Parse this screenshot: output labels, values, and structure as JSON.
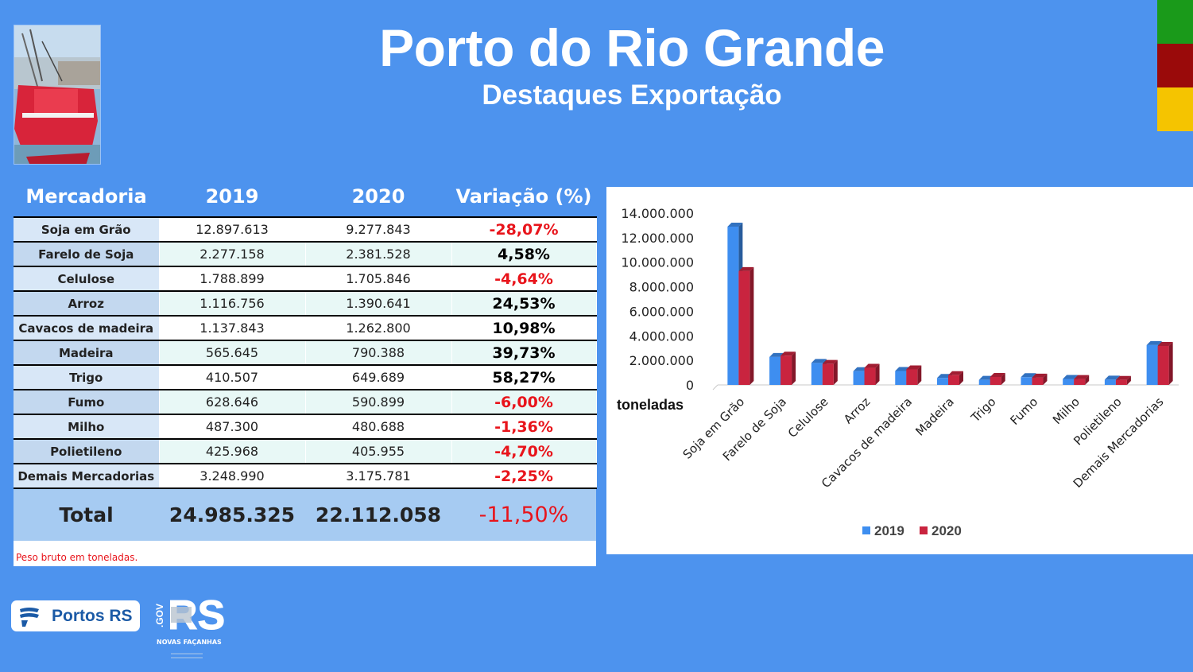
{
  "header": {
    "title": "Porto do Rio Grande",
    "subtitle": "Destaques Exportação"
  },
  "flag_colors": [
    "#1a9a1a",
    "#9a0a0a",
    "#f5c400"
  ],
  "table": {
    "columns": [
      "Mercadoria",
      "2019",
      "2020",
      "Variação (%)"
    ],
    "rows": [
      {
        "name": "Soja em Grão",
        "v2019": "12.897.613",
        "v2020": "9.277.843",
        "var": "-28,07%"
      },
      {
        "name": "Farelo de Soja",
        "v2019": "2.277.158",
        "v2020": "2.381.528",
        "var": "4,58%"
      },
      {
        "name": "Celulose",
        "v2019": "1.788.899",
        "v2020": "1.705.846",
        "var": "-4,64%"
      },
      {
        "name": "Arroz",
        "v2019": "1.116.756",
        "v2020": "1.390.641",
        "var": "24,53%"
      },
      {
        "name": "Cavacos de madeira",
        "v2019": "1.137.843",
        "v2020": "1.262.800",
        "var": "10,98%"
      },
      {
        "name": "Madeira",
        "v2019": "565.645",
        "v2020": "790.388",
        "var": "39,73%"
      },
      {
        "name": "Trigo",
        "v2019": "410.507",
        "v2020": "649.689",
        "var": "58,27%"
      },
      {
        "name": "Fumo",
        "v2019": "628.646",
        "v2020": "590.899",
        "var": "-6,00%"
      },
      {
        "name": "Milho",
        "v2019": "487.300",
        "v2020": "480.688",
        "var": "-1,36%"
      },
      {
        "name": "Polietileno",
        "v2019": "425.968",
        "v2020": "405.955",
        "var": "-4,70%"
      },
      {
        "name": "Demais Mercadorias",
        "v2019": "3.248.990",
        "v2020": "3.175.781",
        "var": "-2,25%"
      }
    ],
    "total": {
      "label": "Total",
      "v2019": "24.985.325",
      "v2020": "22.112.058",
      "var": "-11,50%"
    },
    "footnote": "Peso bruto em toneladas."
  },
  "chart_data": {
    "type": "bar",
    "categories": [
      "Soja em Grão",
      "Farelo de Soja",
      "Celulose",
      "Arroz",
      "Cavacos de madeira",
      "Madeira",
      "Trigo",
      "Fumo",
      "Milho",
      "Polietileno",
      "Demais Mercadorias"
    ],
    "series": [
      {
        "name": "2019",
        "color": "#3e8ef0",
        "values": [
          12897613,
          2277158,
          1788899,
          1116756,
          1137843,
          565645,
          410507,
          628646,
          487300,
          425968,
          3248990
        ]
      },
      {
        "name": "2020",
        "color": "#c9243f",
        "values": [
          9277843,
          2381528,
          1705846,
          1390641,
          1262800,
          790388,
          649689,
          590899,
          480688,
          405955,
          3175781
        ]
      }
    ],
    "ylabel": "toneladas",
    "ylim": [
      0,
      14000000
    ],
    "yticks": [
      "0",
      "2.000.000",
      "4.000.000",
      "6.000.000",
      "8.000.000",
      "10.000.000",
      "12.000.000",
      "14.000.000"
    ],
    "grid": false,
    "legend": "bottom",
    "style": "3d-columns"
  },
  "logos": {
    "portos": "Portos RS",
    "rs_text": "RS",
    "rs_gov": ".GOV",
    "rs_tagline": "NOVAS FAÇANHAS"
  }
}
